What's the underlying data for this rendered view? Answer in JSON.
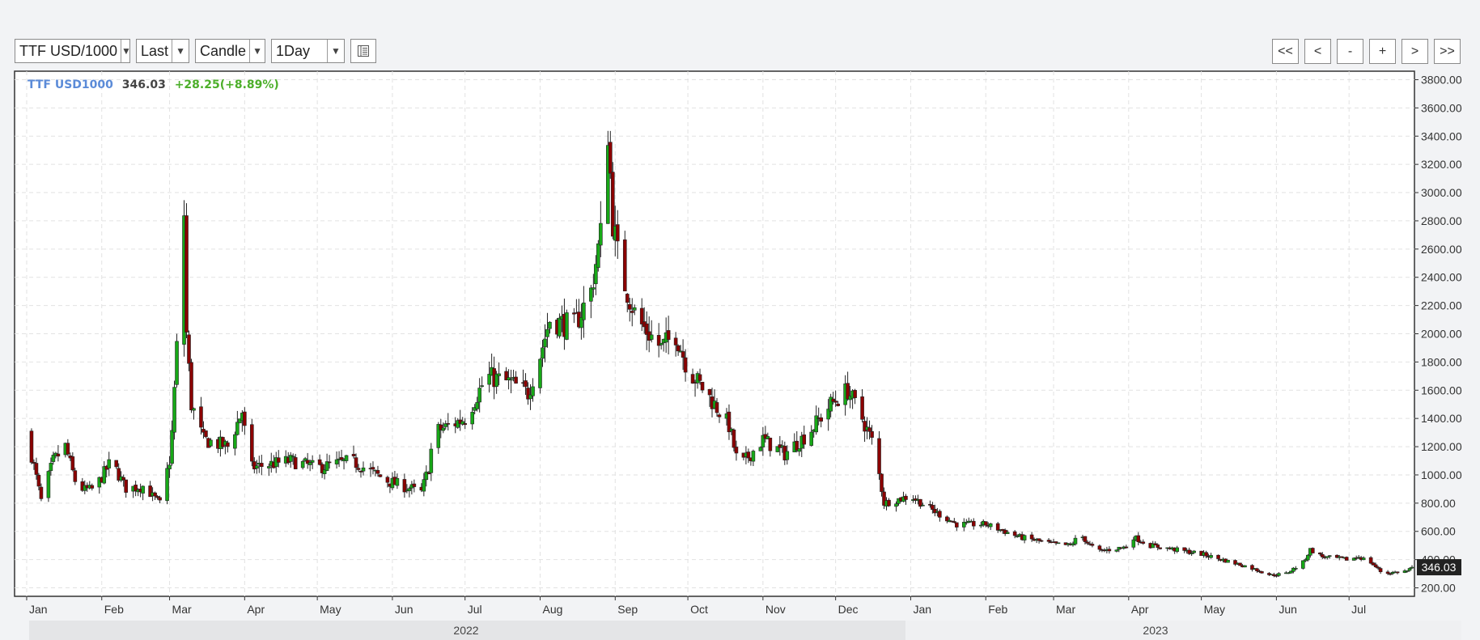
{
  "toolbar": {
    "symbol": "TTF USD/1000",
    "price_field": "Last",
    "chart_type": "Candle",
    "interval": "1Day",
    "settings_icon": "table-settings-icon"
  },
  "nav": {
    "first": "<<",
    "prev": "<",
    "zoom_out": "-",
    "zoom_in": "+",
    "next": ">",
    "last": ">>"
  },
  "legend": {
    "symbol": "TTF USD1000",
    "price": "346.03",
    "change": "+28.25(+8.89%)"
  },
  "colors": {
    "up": "#17a817",
    "down": "#8b0000",
    "symbol": "#5b8bd8",
    "change": "#4caf2a",
    "last_tag": "#222222"
  },
  "chart_data": {
    "type": "candlestick",
    "y_tick_labels": [
      "3800.00",
      "3600.00",
      "3400.00",
      "3200.00",
      "3000.00",
      "2800.00",
      "2600.00",
      "2400.00",
      "2200.00",
      "2000.00",
      "1800.00",
      "1600.00",
      "1400.00",
      "1200.00",
      "1000.00",
      "800.00",
      "600.00",
      "400.00",
      "200.00"
    ],
    "ylim": [
      140,
      3860
    ],
    "x_month_labels": [
      "Jan",
      "Feb",
      "Mar",
      "Apr",
      "May",
      "Jun",
      "Jul",
      "Aug",
      "Sep",
      "Oct",
      "Nov",
      "Dec",
      "Jan",
      "Feb",
      "Mar",
      "Apr",
      "May",
      "Jun",
      "Jul"
    ],
    "year_labels": [
      "2022",
      "2023"
    ],
    "last_value": "346.03",
    "grid": true,
    "close_anchors": [
      [
        "2022-01-01",
        1300
      ],
      [
        "2022-01-07",
        820
      ],
      [
        "2022-01-12",
        1100
      ],
      [
        "2022-01-17",
        1200
      ],
      [
        "2022-01-22",
        900
      ],
      [
        "2022-01-29",
        900
      ],
      [
        "2022-02-05",
        1100
      ],
      [
        "2022-02-11",
        900
      ],
      [
        "2022-02-18",
        920
      ],
      [
        "2022-02-25",
        800
      ],
      [
        "2022-03-01",
        1100
      ],
      [
        "2022-03-02",
        1300
      ],
      [
        "2022-03-04",
        1900
      ],
      [
        "2022-03-06",
        2500
      ],
      [
        "2022-03-07",
        2850
      ],
      [
        "2022-03-08",
        2000
      ],
      [
        "2022-03-10",
        1500
      ],
      [
        "2022-03-15",
        1250
      ],
      [
        "2022-03-25",
        1200
      ],
      [
        "2022-03-31",
        1450
      ],
      [
        "2022-04-03",
        1050
      ],
      [
        "2022-04-20",
        1100
      ],
      [
        "2022-05-01",
        1050
      ],
      [
        "2022-05-15",
        1100
      ],
      [
        "2022-05-31",
        950
      ],
      [
        "2022-06-13",
        880
      ],
      [
        "2022-06-16",
        1050
      ],
      [
        "2022-06-18",
        1300
      ],
      [
        "2022-07-01",
        1400
      ],
      [
        "2022-07-10",
        1700
      ],
      [
        "2022-07-20",
        1650
      ],
      [
        "2022-07-27",
        1580
      ],
      [
        "2022-08-01",
        1850
      ],
      [
        "2022-08-05",
        2100
      ],
      [
        "2022-08-15",
        2050
      ],
      [
        "2022-08-22",
        2300
      ],
      [
        "2022-08-26",
        2700
      ],
      [
        "2022-08-28",
        3100
      ],
      [
        "2022-08-29",
        3450
      ],
      [
        "2022-08-31",
        2800
      ],
      [
        "2022-09-03",
        2450
      ],
      [
        "2022-09-10",
        2100
      ],
      [
        "2022-09-20",
        1900
      ],
      [
        "2022-09-26",
        2000
      ],
      [
        "2022-10-01",
        1750
      ],
      [
        "2022-10-10",
        1550
      ],
      [
        "2022-10-18",
        1350
      ],
      [
        "2022-10-22",
        1050
      ],
      [
        "2022-11-01",
        1250
      ],
      [
        "2022-11-10",
        1150
      ],
      [
        "2022-11-20",
        1300
      ],
      [
        "2022-11-29",
        1500
      ],
      [
        "2022-12-06",
        1600
      ],
      [
        "2022-12-12",
        1400
      ],
      [
        "2022-12-17",
        1200
      ],
      [
        "2022-12-21",
        800
      ],
      [
        "2023-01-01",
        850
      ],
      [
        "2023-01-10",
        750
      ],
      [
        "2023-01-20",
        650
      ],
      [
        "2023-02-01",
        650
      ],
      [
        "2023-02-15",
        560
      ],
      [
        "2023-03-01",
        510
      ],
      [
        "2023-03-08",
        500
      ],
      [
        "2023-03-12",
        580
      ],
      [
        "2023-03-16",
        500
      ],
      [
        "2023-03-20",
        460
      ],
      [
        "2023-03-31",
        490
      ],
      [
        "2023-04-03",
        560
      ],
      [
        "2023-04-10",
        500
      ],
      [
        "2023-05-01",
        440
      ],
      [
        "2023-05-20",
        350
      ],
      [
        "2023-05-30",
        290
      ],
      [
        "2023-06-05",
        300
      ],
      [
        "2023-06-12",
        380
      ],
      [
        "2023-06-15",
        470
      ],
      [
        "2023-06-20",
        420
      ],
      [
        "2023-07-01",
        400
      ],
      [
        "2023-07-05",
        420
      ],
      [
        "2023-07-10",
        380
      ],
      [
        "2023-07-15",
        300
      ],
      [
        "2023-07-25",
        320
      ],
      [
        "2023-07-27",
        346
      ]
    ]
  }
}
